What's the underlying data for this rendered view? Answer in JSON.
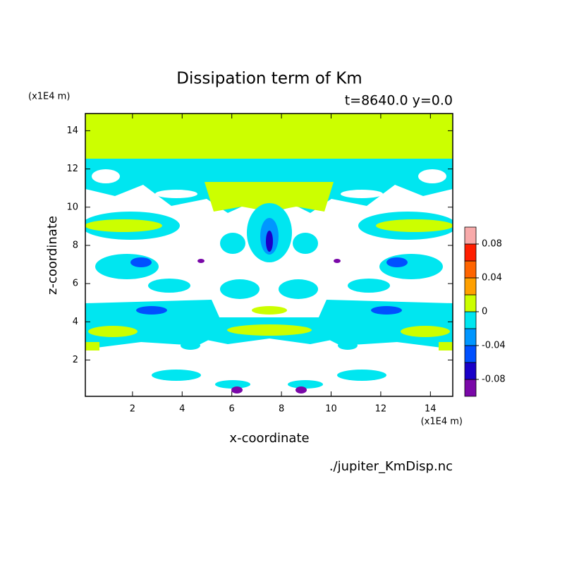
{
  "chart_data": {
    "type": "contour",
    "title": "Dissipation term of Km",
    "subtitle": "t=8640.0 y=0.0",
    "x_label": "x-coordinate",
    "y_label": "z-coordinate",
    "x_unit": "(x1E4 m)",
    "y_unit": "(x1E4 m)",
    "source": "./jupiter_KmDisp.nc",
    "xlim": [
      0.1,
      14.9
    ],
    "ylim": [
      0.1,
      14.9
    ],
    "xticks": [
      2,
      4,
      6,
      8,
      10,
      12,
      14
    ],
    "yticks": [
      2,
      4,
      6,
      8,
      10,
      12,
      14
    ],
    "colorbar": {
      "lim": [
        -0.1,
        0.1
      ],
      "levels": [
        -0.1,
        -0.08,
        -0.06,
        -0.04,
        -0.02,
        0,
        0.02,
        0.04,
        0.06,
        0.08,
        0.1
      ],
      "colors": [
        "#7a08a8",
        "#1a00c8",
        "#0050ff",
        "#0096ff",
        "#00e6f0",
        "#ccff00",
        "#ffa000",
        "#ff6400",
        "#ff1e00",
        "#f8aaaa"
      ],
      "ticks": [
        -0.08,
        -0.04,
        0,
        0.04,
        0.08
      ]
    }
  }
}
